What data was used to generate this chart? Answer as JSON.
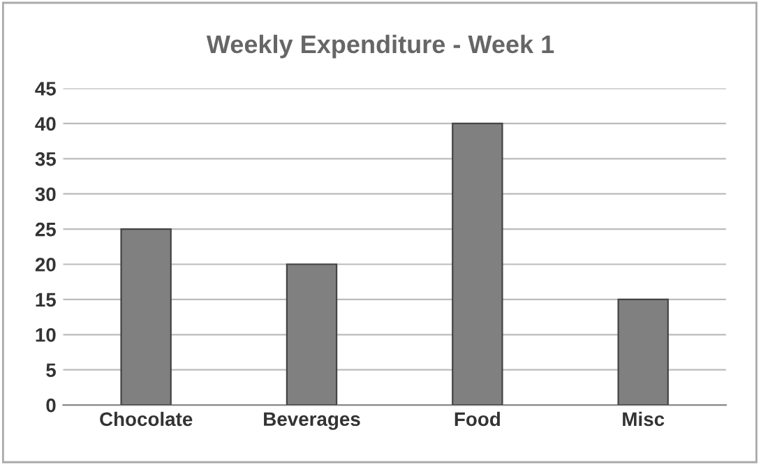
{
  "chart_data": {
    "type": "bar",
    "title": "Weekly Expenditure - Week 1",
    "categories": [
      "Chocolate",
      "Beverages",
      "Food",
      "Misc"
    ],
    "values": [
      25,
      20,
      40,
      15
    ],
    "color": "#808080",
    "ylim": [
      0,
      45
    ],
    "yticks": [
      0,
      5,
      10,
      15,
      20,
      25,
      30,
      35,
      40,
      45
    ],
    "grid": "y",
    "legend": false
  }
}
